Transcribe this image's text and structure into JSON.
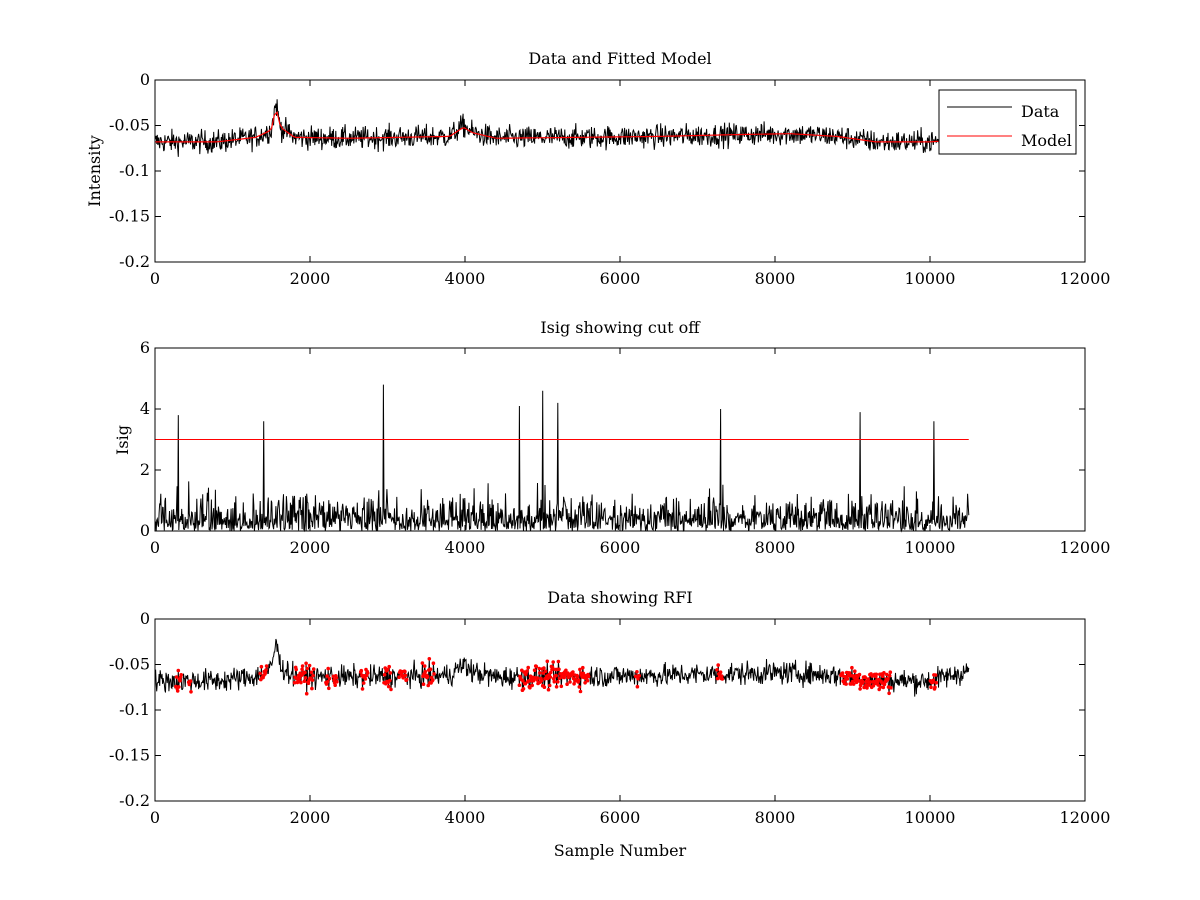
{
  "colors": {
    "data": "#000000",
    "model": "#ff0000",
    "cutoff": "#ff0000",
    "rfi": "#ff0000"
  },
  "chart_data": [
    {
      "type": "line",
      "title": "Data and Fitted Model",
      "xlabel": "",
      "ylabel": "Intensity",
      "xlim": [
        0,
        12000
      ],
      "ylim": [
        -0.2,
        0
      ],
      "xticks": [
        0,
        2000,
        4000,
        6000,
        8000,
        10000,
        12000
      ],
      "xtick_labels": [
        "0",
        "2000",
        "4000",
        "6000",
        "8000",
        "10000",
        "12000"
      ],
      "yticks": [
        -0.2,
        -0.15,
        -0.1,
        -0.05,
        0
      ],
      "ytick_labels": [
        "-0.2",
        "-0.15",
        "-0.1",
        "-0.05",
        "0"
      ],
      "legend": {
        "position": "top-right",
        "entries": [
          "Data",
          "Model"
        ]
      },
      "series": [
        {
          "name": "Data",
          "kind": "noisy",
          "x_end": 10500,
          "noise": 0.009,
          "baseline": [
            [
              0,
              -0.068
            ],
            [
              800,
              -0.068
            ],
            [
              1300,
              -0.063
            ],
            [
              1500,
              -0.055
            ],
            [
              1560,
              -0.025
            ],
            [
              1620,
              -0.052
            ],
            [
              1800,
              -0.063
            ],
            [
              2500,
              -0.064
            ],
            [
              3800,
              -0.062
            ],
            [
              3980,
              -0.05
            ],
            [
              4100,
              -0.058
            ],
            [
              4400,
              -0.064
            ],
            [
              5500,
              -0.063
            ],
            [
              6500,
              -0.062
            ],
            [
              7500,
              -0.06
            ],
            [
              8200,
              -0.059
            ],
            [
              8800,
              -0.062
            ],
            [
              9300,
              -0.068
            ],
            [
              10000,
              -0.068
            ],
            [
              10500,
              -0.065
            ]
          ]
        },
        {
          "name": "Model",
          "kind": "line",
          "x_end": 10500,
          "baseline": [
            [
              0,
              -0.068
            ],
            [
              800,
              -0.068
            ],
            [
              1300,
              -0.063
            ],
            [
              1500,
              -0.055
            ],
            [
              1560,
              -0.03
            ],
            [
              1620,
              -0.052
            ],
            [
              1800,
              -0.063
            ],
            [
              2500,
              -0.064
            ],
            [
              3800,
              -0.062
            ],
            [
              3980,
              -0.052
            ],
            [
              4100,
              -0.058
            ],
            [
              4400,
              -0.064
            ],
            [
              5500,
              -0.063
            ],
            [
              6500,
              -0.062
            ],
            [
              7500,
              -0.06
            ],
            [
              8200,
              -0.059
            ],
            [
              8800,
              -0.062
            ],
            [
              9300,
              -0.068
            ],
            [
              10000,
              -0.068
            ],
            [
              10500,
              -0.065
            ]
          ]
        }
      ]
    },
    {
      "type": "line",
      "title": "Isig showing cut off",
      "xlabel": "",
      "ylabel": "Isig",
      "xlim": [
        0,
        12000
      ],
      "ylim": [
        0,
        6
      ],
      "xticks": [
        0,
        2000,
        4000,
        6000,
        8000,
        10000,
        12000
      ],
      "xtick_labels": [
        "0",
        "2000",
        "4000",
        "6000",
        "8000",
        "10000",
        "12000"
      ],
      "yticks": [
        0,
        2,
        4,
        6
      ],
      "ytick_labels": [
        "0",
        "2",
        "4",
        "6"
      ],
      "cutoff": 3,
      "series": [
        {
          "name": "Isig",
          "kind": "abs-noise",
          "x_end": 10500,
          "scale": 0.8,
          "spikes": [
            [
              300,
              3.8
            ],
            [
              1400,
              3.6
            ],
            [
              2950,
              4.8
            ],
            [
              4700,
              4.1
            ],
            [
              5000,
              4.6
            ],
            [
              5200,
              4.2
            ],
            [
              7300,
              4.0
            ],
            [
              9100,
              3.9
            ],
            [
              10050,
              3.6
            ]
          ]
        },
        {
          "name": "Cut off",
          "kind": "hline",
          "x_end": 10500,
          "y": 3
        }
      ]
    },
    {
      "type": "line",
      "title": "Data showing RFI",
      "xlabel": "Sample Number",
      "ylabel": "",
      "xlim": [
        0,
        12000
      ],
      "ylim": [
        -0.2,
        0
      ],
      "xticks": [
        0,
        2000,
        4000,
        6000,
        8000,
        10000,
        12000
      ],
      "xtick_labels": [
        "0",
        "2000",
        "4000",
        "6000",
        "8000",
        "10000",
        "12000"
      ],
      "yticks": [
        -0.2,
        -0.15,
        -0.1,
        -0.05,
        0
      ],
      "ytick_labels": [
        "-0.2",
        "-0.15",
        "-0.1",
        "-0.05",
        "0"
      ],
      "series": [
        {
          "name": "Data",
          "kind": "noisy",
          "x_end": 10500,
          "noise": 0.009,
          "baseline": [
            [
              0,
              -0.068
            ],
            [
              800,
              -0.068
            ],
            [
              1300,
              -0.063
            ],
            [
              1500,
              -0.055
            ],
            [
              1560,
              -0.025
            ],
            [
              1620,
              -0.052
            ],
            [
              1800,
              -0.063
            ],
            [
              2500,
              -0.064
            ],
            [
              3800,
              -0.062
            ],
            [
              3980,
              -0.05
            ],
            [
              4100,
              -0.058
            ],
            [
              4400,
              -0.064
            ],
            [
              5500,
              -0.063
            ],
            [
              6500,
              -0.062
            ],
            [
              7500,
              -0.06
            ],
            [
              8200,
              -0.059
            ],
            [
              8800,
              -0.062
            ],
            [
              9300,
              -0.068
            ],
            [
              10000,
              -0.068
            ],
            [
              10500,
              -0.057
            ]
          ]
        }
      ],
      "rfi_ranges": [
        [
          270,
          340
        ],
        [
          430,
          470
        ],
        [
          1350,
          1440
        ],
        [
          1800,
          2050
        ],
        [
          2200,
          2250
        ],
        [
          2300,
          2350
        ],
        [
          2650,
          2750
        ],
        [
          2950,
          3050
        ],
        [
          3150,
          3250
        ],
        [
          3450,
          3600
        ],
        [
          4700,
          5600
        ],
        [
          6200,
          6250
        ],
        [
          7250,
          7320
        ],
        [
          8850,
          9500
        ],
        [
          10000,
          10080
        ]
      ]
    }
  ]
}
